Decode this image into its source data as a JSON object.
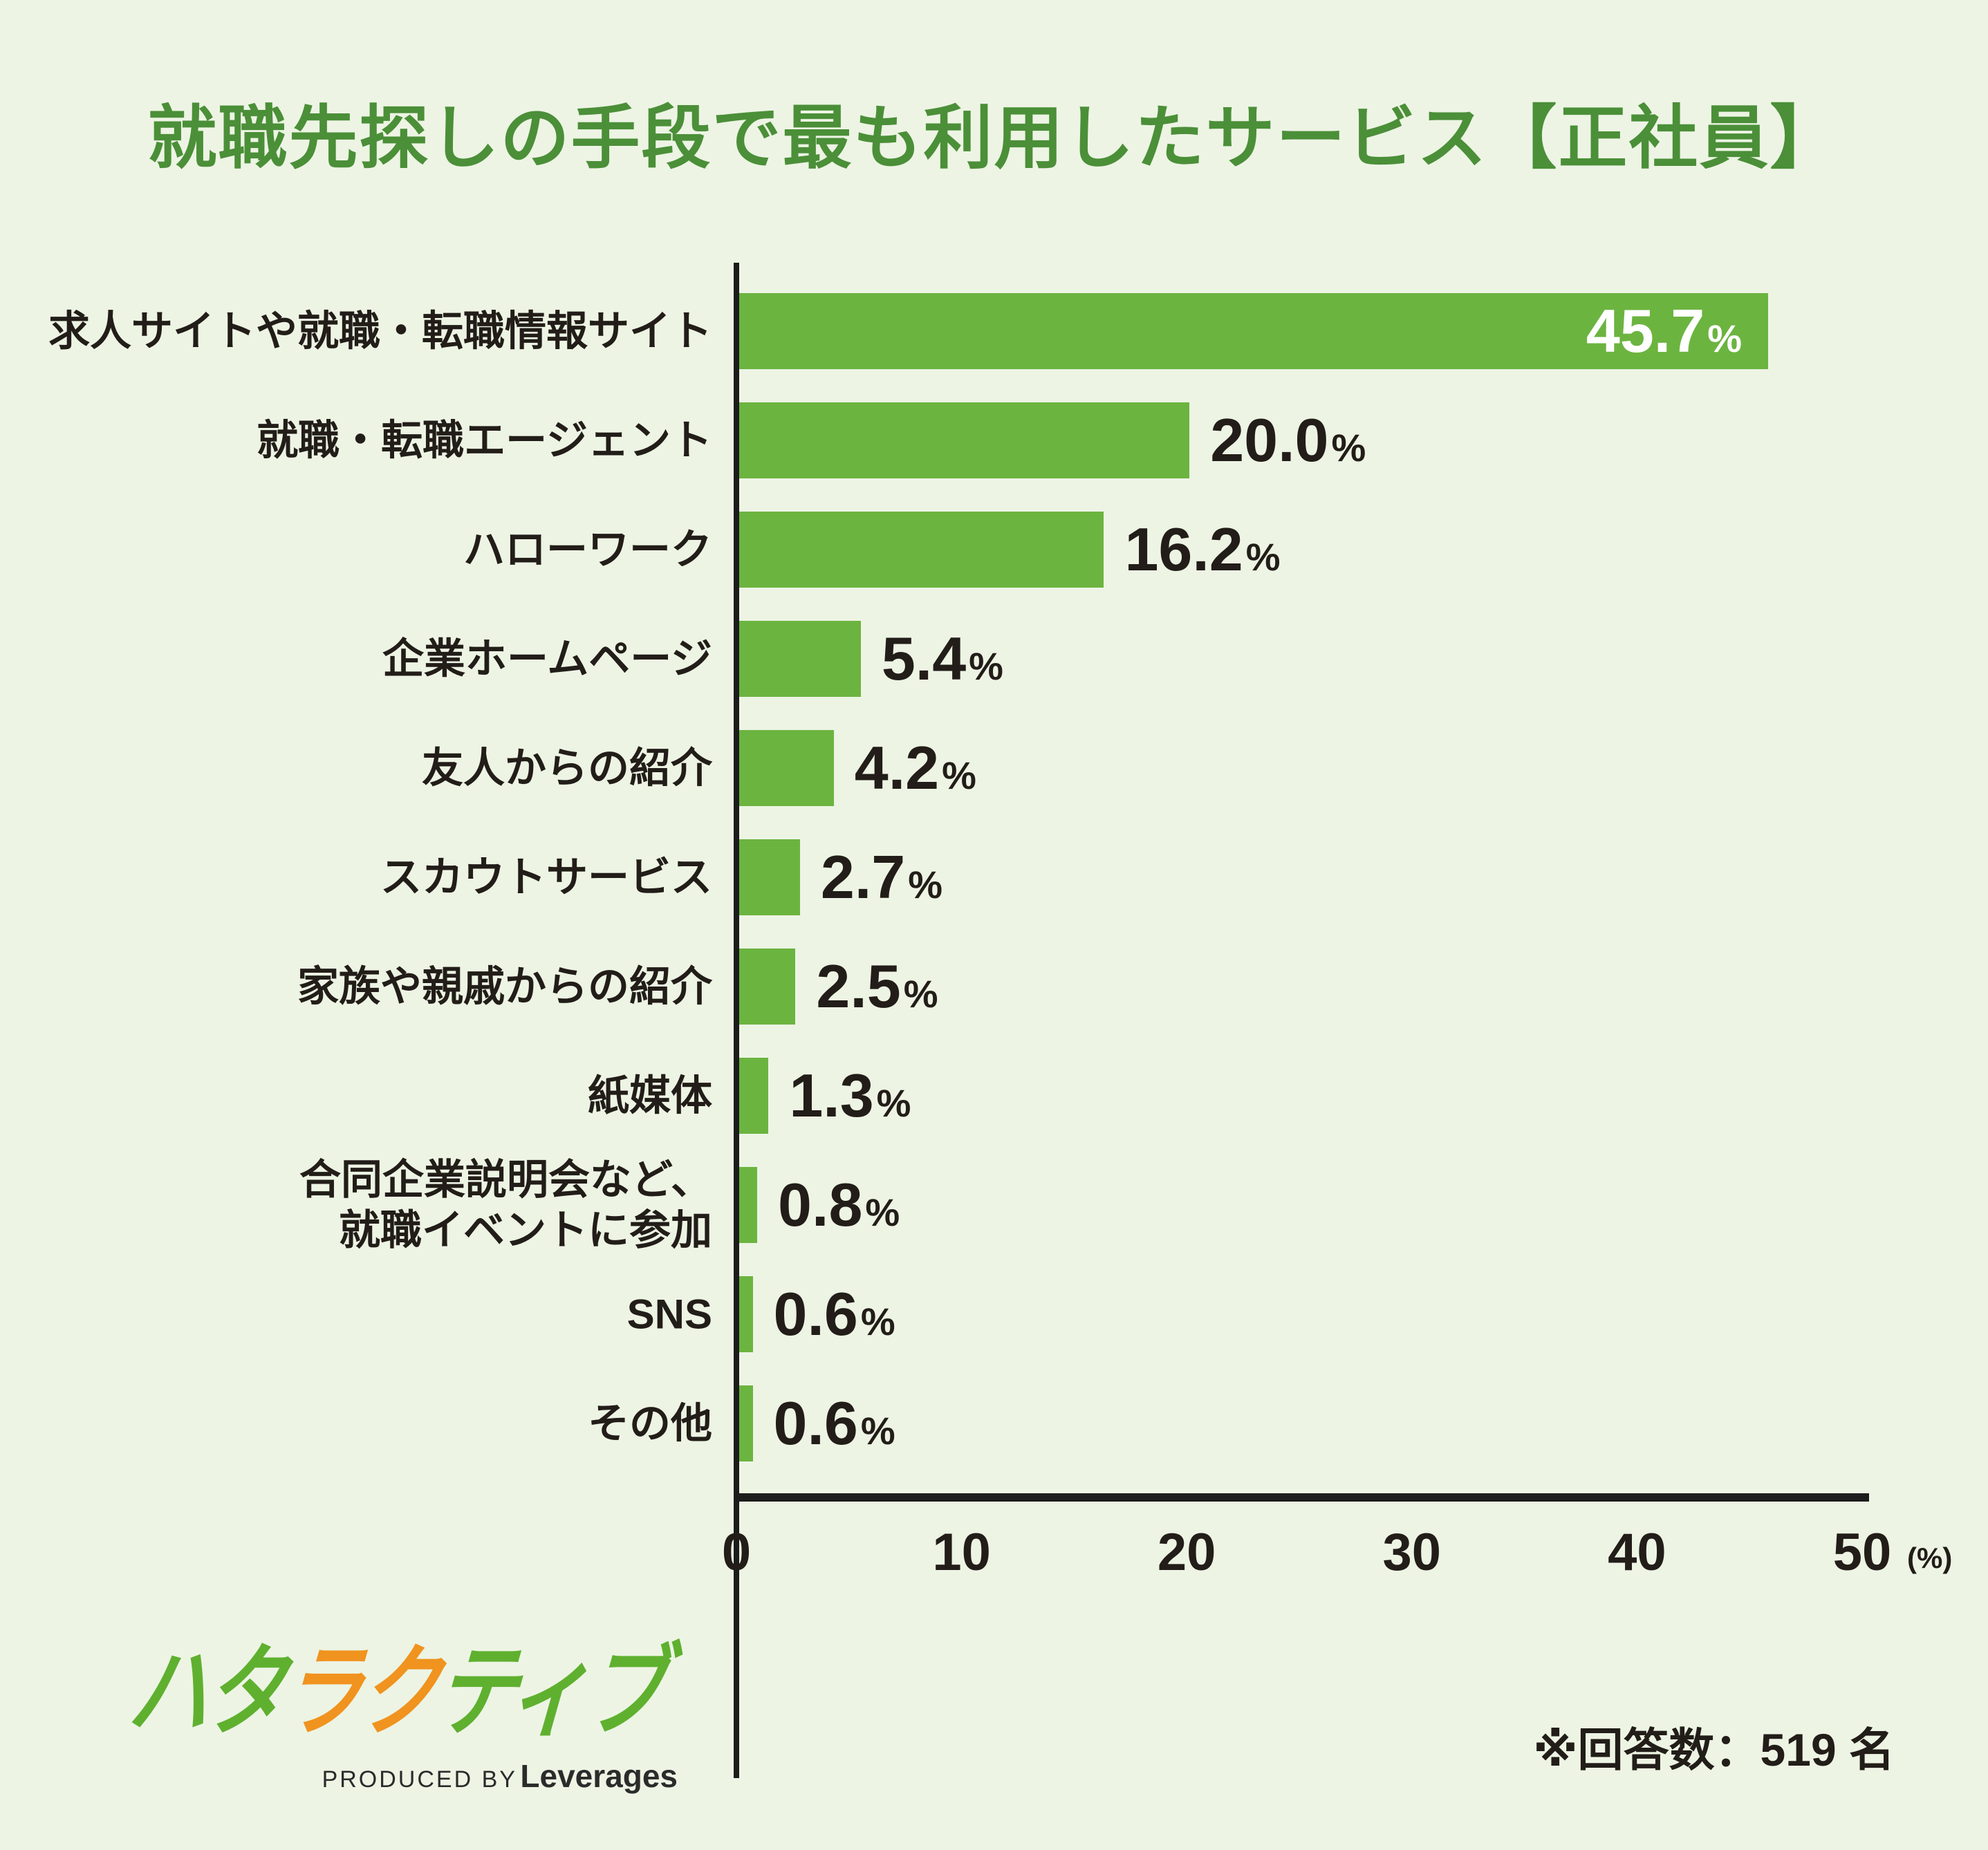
{
  "title": "就職先探しの手段で最も利用したサービス【正社員】",
  "colors": {
    "background": "#EDF4E4",
    "title": "#4B8F38",
    "bar": "#6CB440",
    "text": "#221D18",
    "axis": "#1C1C1C",
    "value_inside": "#FFFFFF",
    "logo_green": "#5FB02F",
    "logo_orange": "#F0931F"
  },
  "chart_data": {
    "type": "bar",
    "orientation": "horizontal",
    "title": "就職先探しの手段で最も利用したサービス【正社員】",
    "categories": [
      "求人サイトや就職・転職情報サイト",
      "就職・転職エージェント",
      "ハローワーク",
      "企業ホームページ",
      "友人からの紹介",
      "スカウトサービス",
      "家族や親戚からの紹介",
      "紙媒体",
      "合同企業説明会など、\n就職イベントに参加",
      "SNS",
      "その他"
    ],
    "values": [
      45.7,
      20.0,
      16.2,
      5.4,
      4.2,
      2.7,
      2.5,
      1.3,
      0.8,
      0.6,
      0.6
    ],
    "value_texts": [
      "45.7",
      "20.0",
      "16.2",
      "5.4",
      "4.2",
      "2.7",
      "2.5",
      "1.3",
      "0.8",
      "0.6",
      "0.6"
    ],
    "percent_symbol": "%",
    "inside_label_indices": [
      0
    ],
    "x_ticks": [
      0,
      10,
      20,
      30,
      40,
      50
    ],
    "x_tick_labels": [
      "0",
      "10",
      "20",
      "30",
      "40",
      "50"
    ],
    "xlim": [
      0,
      50
    ],
    "axis_unit": "(%)",
    "grid": false,
    "legend": false
  },
  "footer": {
    "logo_chars": [
      {
        "ch": "ハ",
        "color": "#5FB02F"
      },
      {
        "ch": "タ",
        "color": "#5FB02F"
      },
      {
        "ch": "ラ",
        "color": "#F0931F"
      },
      {
        "ch": "ク",
        "color": "#F0931F"
      },
      {
        "ch": "テ",
        "color": "#5FB02F"
      },
      {
        "ch": "ィ",
        "color": "#5FB02F"
      },
      {
        "ch": "ブ",
        "color": "#5FB02F"
      }
    ],
    "produced_by": "PRODUCED BY",
    "leverages": "Leverages",
    "note": "※回答数：519 名"
  }
}
